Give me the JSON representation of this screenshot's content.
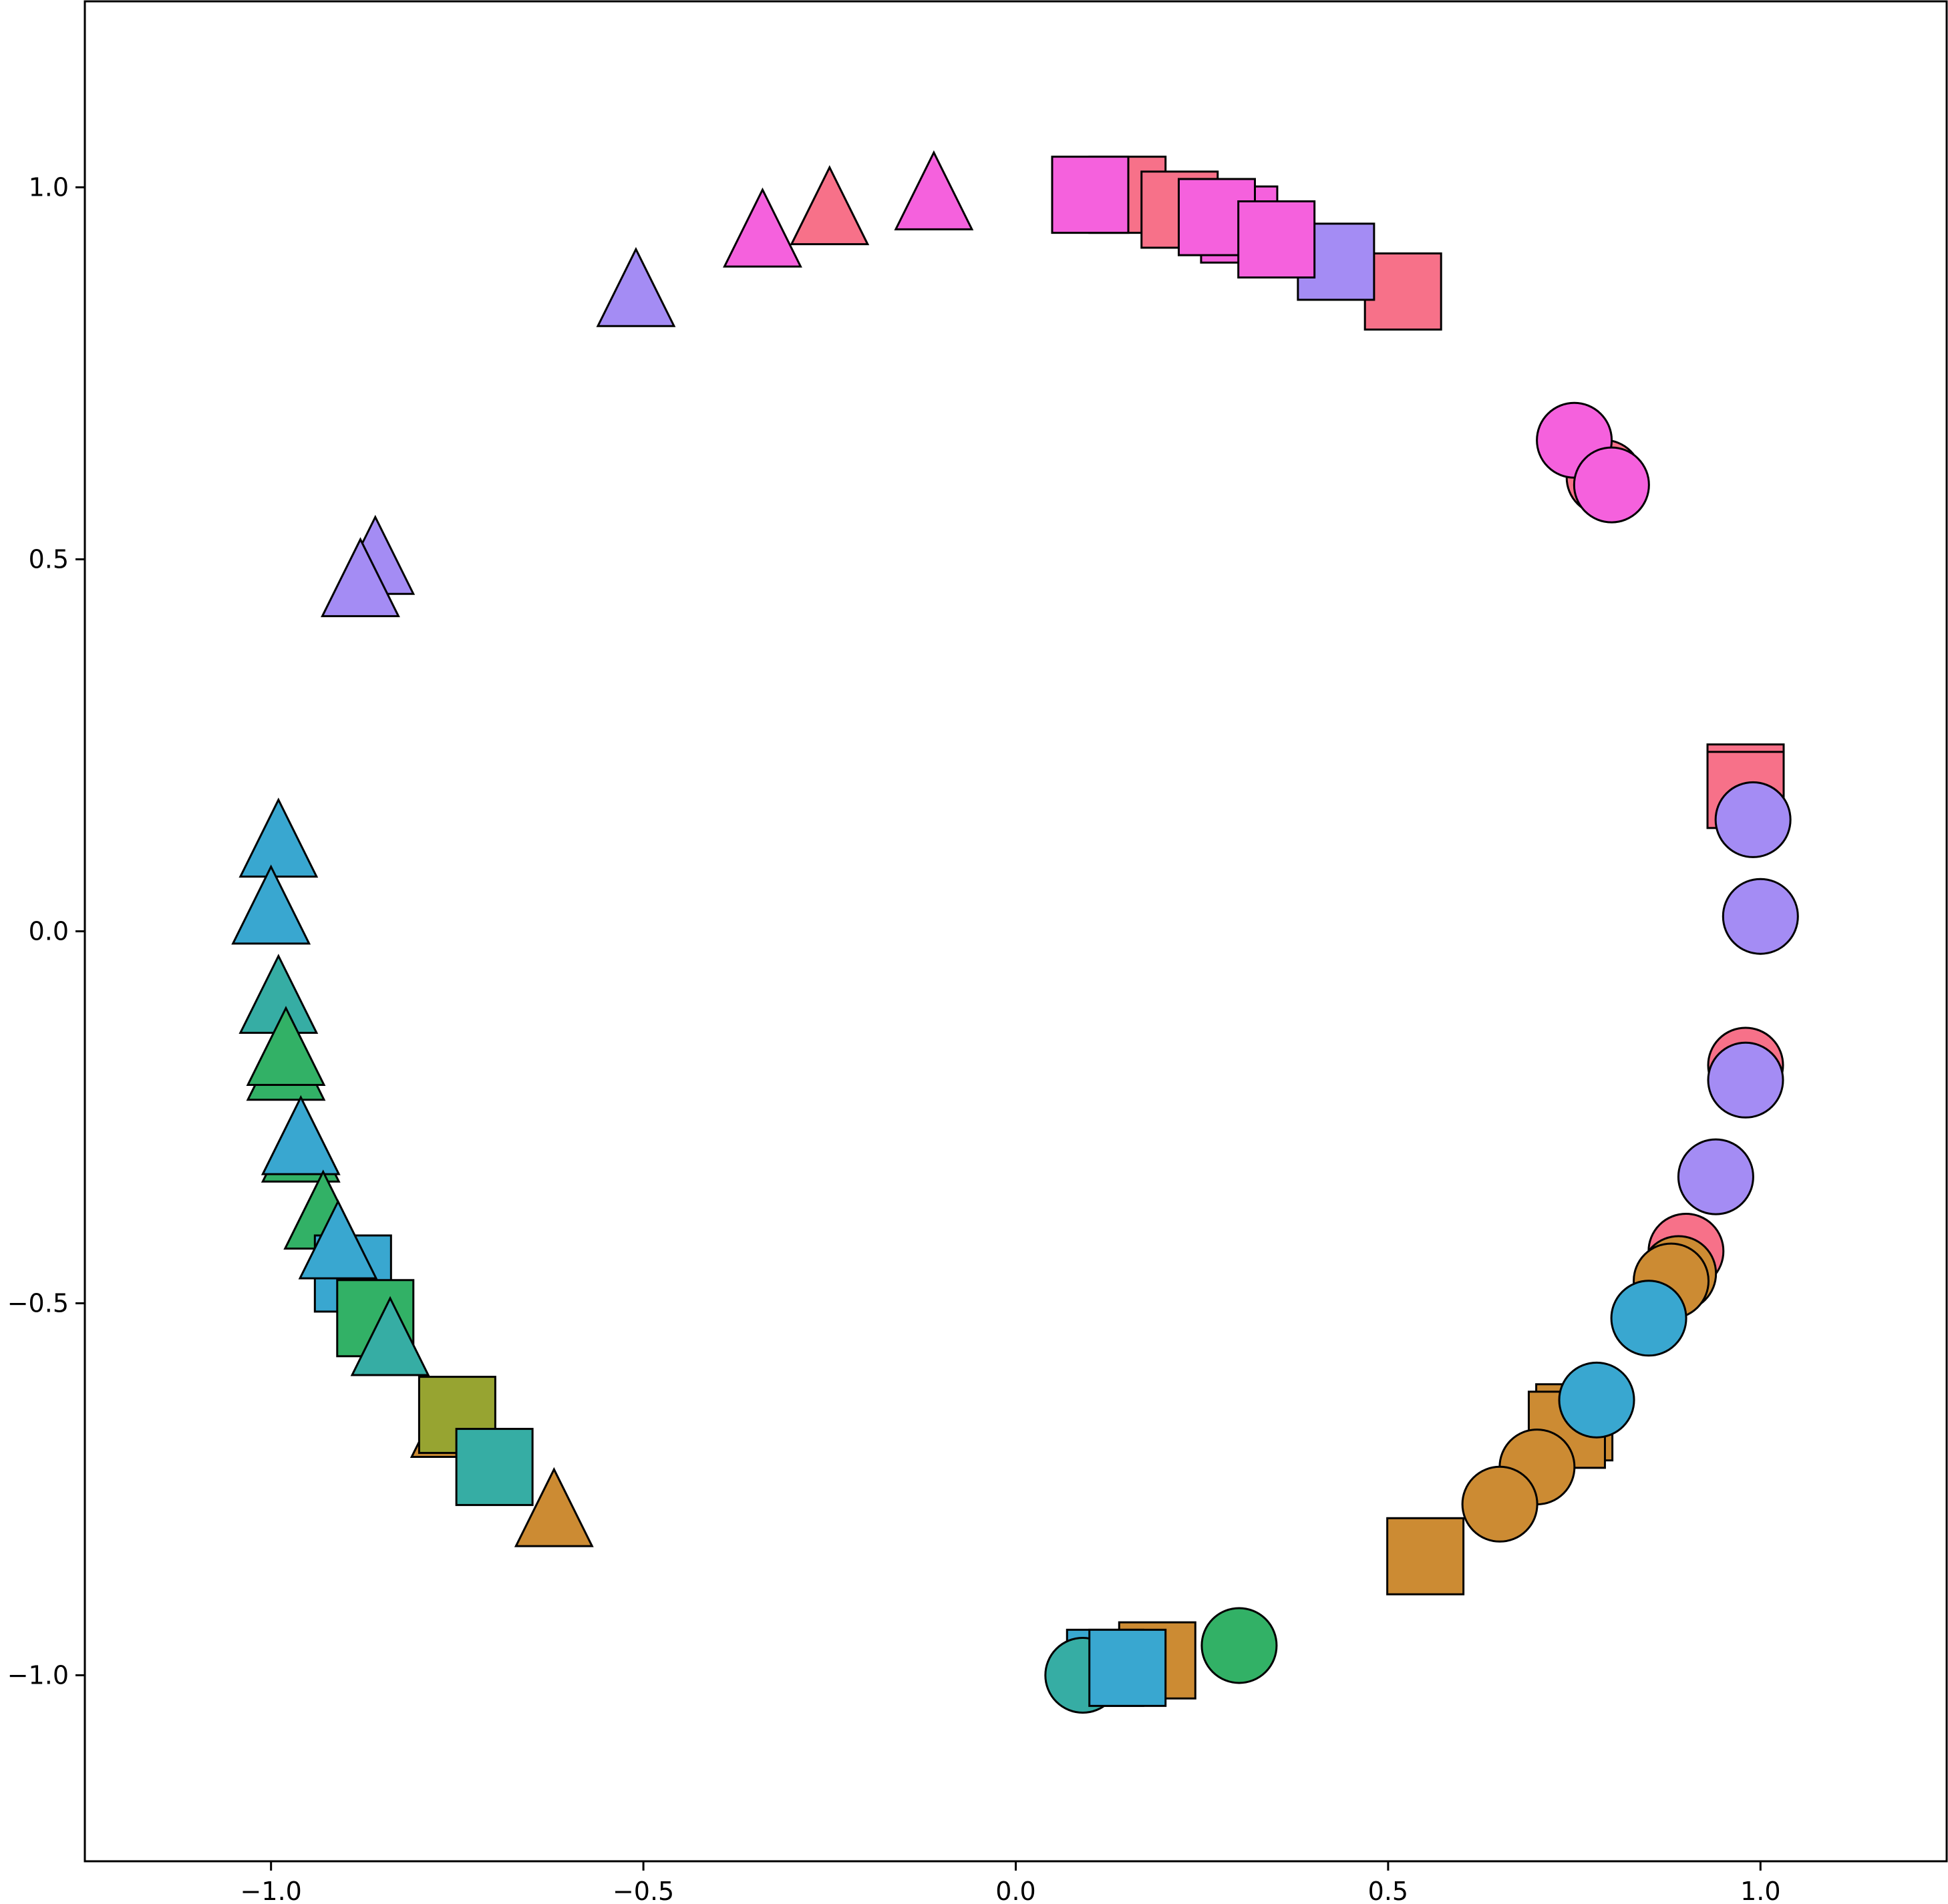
{
  "chart_data": {
    "type": "scatter",
    "title": "",
    "xlabel": "",
    "ylabel": "",
    "xlim": [
      -1.25,
      1.25
    ],
    "ylim": [
      -1.25,
      1.25
    ],
    "grid": false,
    "legend": "none",
    "xticks": [
      -1.0,
      -0.5,
      0.0,
      0.5,
      1.0
    ],
    "yticks": [
      -1.0,
      -0.5,
      0.0,
      0.5,
      1.0
    ],
    "xtick_labels": [
      "−1.0",
      "−0.5",
      "0.0",
      "0.5",
      "1.0"
    ],
    "ytick_labels": [
      "−1.0",
      "−0.5",
      "0.0",
      "0.5",
      "1.0"
    ],
    "colors": {
      "red": "#f77189",
      "orange": "#cc8b33",
      "olive": "#97a431",
      "green": "#32b166",
      "teal": "#36ada4",
      "blue": "#39a7d0",
      "purple": "#a48cf4",
      "pink": "#f561dd"
    },
    "marker_shapes": [
      "circle",
      "square",
      "triangle"
    ],
    "points": [
      {
        "x": 0.15,
        "y": 0.99,
        "color": "red",
        "marker": "square"
      },
      {
        "x": 0.22,
        "y": 0.97,
        "color": "red",
        "marker": "square"
      },
      {
        "x": 0.52,
        "y": 0.86,
        "color": "red",
        "marker": "square"
      },
      {
        "x": 0.27,
        "y": 0.96,
        "color": "pink",
        "marker": "square"
      },
      {
        "x": 0.3,
        "y": 0.95,
        "color": "pink",
        "marker": "square"
      },
      {
        "x": 0.43,
        "y": 0.9,
        "color": "purple",
        "marker": "square"
      },
      {
        "x": 0.1,
        "y": 0.99,
        "color": "pink",
        "marker": "square"
      },
      {
        "x": 0.27,
        "y": 0.96,
        "color": "pink",
        "marker": "square"
      },
      {
        "x": 0.35,
        "y": 0.93,
        "color": "pink",
        "marker": "square"
      },
      {
        "x": -0.51,
        "y": 0.86,
        "color": "purple",
        "marker": "triangle"
      },
      {
        "x": -0.34,
        "y": 0.94,
        "color": "pink",
        "marker": "triangle"
      },
      {
        "x": -0.25,
        "y": 0.97,
        "color": "red",
        "marker": "triangle"
      },
      {
        "x": -0.11,
        "y": 0.99,
        "color": "pink",
        "marker": "triangle"
      },
      {
        "x": 0.79,
        "y": 0.61,
        "color": "red",
        "marker": "circle"
      },
      {
        "x": 0.75,
        "y": 0.66,
        "color": "pink",
        "marker": "circle"
      },
      {
        "x": 0.8,
        "y": 0.6,
        "color": "pink",
        "marker": "circle"
      },
      {
        "x": -0.86,
        "y": 0.5,
        "color": "purple",
        "marker": "triangle"
      },
      {
        "x": -0.88,
        "y": 0.47,
        "color": "purple",
        "marker": "triangle"
      },
      {
        "x": 0.98,
        "y": 0.2,
        "color": "red",
        "marker": "square"
      },
      {
        "x": 0.98,
        "y": 0.19,
        "color": "red",
        "marker": "square"
      },
      {
        "x": 0.99,
        "y": 0.15,
        "color": "purple",
        "marker": "circle"
      },
      {
        "x": 1.0,
        "y": 0.02,
        "color": "purple",
        "marker": "circle"
      },
      {
        "x": 0.98,
        "y": -0.18,
        "color": "red",
        "marker": "circle"
      },
      {
        "x": 0.98,
        "y": -0.2,
        "color": "purple",
        "marker": "circle"
      },
      {
        "x": 0.94,
        "y": -0.33,
        "color": "purple",
        "marker": "circle"
      },
      {
        "x": 0.9,
        "y": -0.43,
        "color": "red",
        "marker": "circle"
      },
      {
        "x": 0.89,
        "y": -0.46,
        "color": "orange",
        "marker": "circle"
      },
      {
        "x": 0.88,
        "y": -0.47,
        "color": "orange",
        "marker": "circle"
      },
      {
        "x": 0.85,
        "y": -0.52,
        "color": "blue",
        "marker": "circle"
      },
      {
        "x": 0.75,
        "y": -0.66,
        "color": "orange",
        "marker": "square"
      },
      {
        "x": 0.74,
        "y": -0.67,
        "color": "orange",
        "marker": "square"
      },
      {
        "x": 0.78,
        "y": -0.63,
        "color": "blue",
        "marker": "circle"
      },
      {
        "x": 0.7,
        "y": -0.72,
        "color": "orange",
        "marker": "circle"
      },
      {
        "x": 0.65,
        "y": -0.77,
        "color": "orange",
        "marker": "circle"
      },
      {
        "x": 0.55,
        "y": -0.84,
        "color": "orange",
        "marker": "square"
      },
      {
        "x": 0.3,
        "y": -0.96,
        "color": "green",
        "marker": "circle"
      },
      {
        "x": 0.19,
        "y": -0.98,
        "color": "orange",
        "marker": "square"
      },
      {
        "x": 0.12,
        "y": -0.99,
        "color": "blue",
        "marker": "square"
      },
      {
        "x": 0.09,
        "y": -1.0,
        "color": "teal",
        "marker": "circle"
      },
      {
        "x": 0.15,
        "y": -0.99,
        "color": "blue",
        "marker": "square"
      },
      {
        "x": -0.99,
        "y": 0.12,
        "color": "blue",
        "marker": "triangle"
      },
      {
        "x": -1.0,
        "y": 0.03,
        "color": "blue",
        "marker": "triangle"
      },
      {
        "x": -0.99,
        "y": -0.09,
        "color": "teal",
        "marker": "triangle"
      },
      {
        "x": -0.98,
        "y": -0.18,
        "color": "green",
        "marker": "triangle"
      },
      {
        "x": -0.98,
        "y": -0.16,
        "color": "green",
        "marker": "triangle"
      },
      {
        "x": -0.96,
        "y": -0.29,
        "color": "green",
        "marker": "triangle"
      },
      {
        "x": -0.96,
        "y": -0.28,
        "color": "blue",
        "marker": "triangle"
      },
      {
        "x": -0.93,
        "y": -0.38,
        "color": "green",
        "marker": "triangle"
      },
      {
        "x": -0.89,
        "y": -0.46,
        "color": "blue",
        "marker": "square"
      },
      {
        "x": -0.86,
        "y": -0.52,
        "color": "green",
        "marker": "square"
      },
      {
        "x": -0.91,
        "y": -0.42,
        "color": "blue",
        "marker": "triangle"
      },
      {
        "x": -0.84,
        "y": -0.55,
        "color": "teal",
        "marker": "triangle"
      },
      {
        "x": -0.76,
        "y": -0.66,
        "color": "orange",
        "marker": "triangle"
      },
      {
        "x": -0.75,
        "y": -0.65,
        "color": "olive",
        "marker": "square"
      },
      {
        "x": -0.7,
        "y": -0.72,
        "color": "teal",
        "marker": "square"
      },
      {
        "x": -0.62,
        "y": -0.78,
        "color": "orange",
        "marker": "triangle"
      }
    ]
  }
}
